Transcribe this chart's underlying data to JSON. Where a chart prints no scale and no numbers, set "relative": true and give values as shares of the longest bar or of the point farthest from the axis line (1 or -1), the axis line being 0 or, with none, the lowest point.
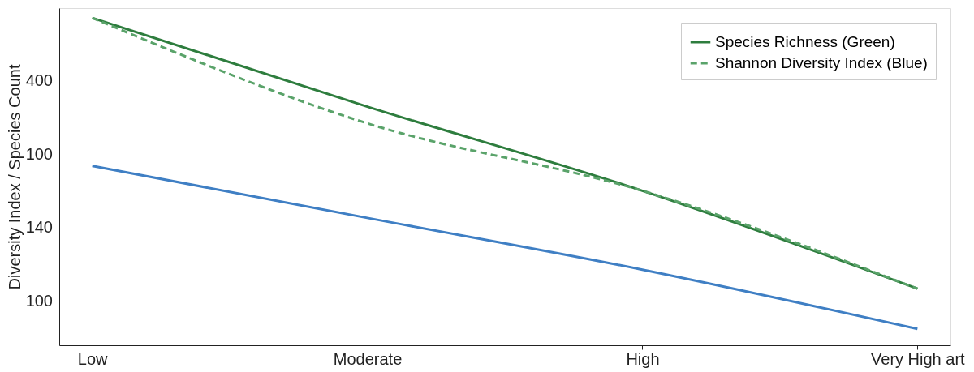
{
  "chart_data": {
    "type": "line",
    "ylabel": "Diversity Index / Species Count",
    "categories": [
      "Low",
      "Moderate",
      "High",
      "Very High art"
    ],
    "relative": true,
    "annotations": [
      "400",
      "100",
      "140",
      "100"
    ],
    "series": [
      {
        "name": "Species Richness (Green)",
        "color": "#2e7d3e",
        "line_style": "solid",
        "values": [
          1.0,
          0.729,
          0.472,
          0.173
        ]
      },
      {
        "name": "Shannon Diversity Index (Blue)",
        "color": "#5aa36a",
        "line_style": "dashed",
        "values": [
          1.0,
          0.678,
          0.472,
          0.173
        ]
      },
      {
        "color": "#3f7fc4",
        "line_style": "solid",
        "values": [
          0.548,
          0.389,
          0.231,
          0.05
        ]
      }
    ],
    "legend": "top right",
    "marker": "none"
  }
}
